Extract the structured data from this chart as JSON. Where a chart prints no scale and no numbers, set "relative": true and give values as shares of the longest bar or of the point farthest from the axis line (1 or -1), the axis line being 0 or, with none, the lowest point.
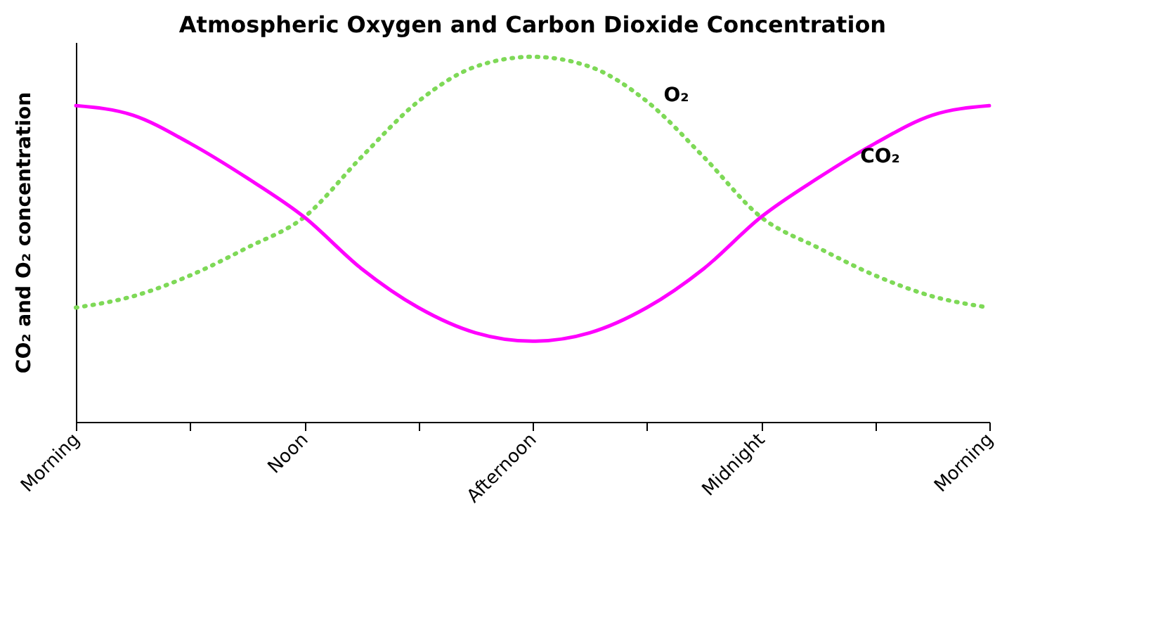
{
  "chart_data": {
    "type": "line",
    "title": "Atmospheric Oxygen and Carbon Dioxide Concentration",
    "ylabel": "CO₂ and O₂ concentration",
    "relative": true,
    "grid": false,
    "tick_labels": "x",
    "marker": "none",
    "categories": [
      "Morning",
      null,
      null,
      null,
      "Noon",
      null,
      null,
      null,
      "Afternoon",
      null,
      null,
      null,
      "Midnight",
      null,
      null,
      null,
      "Morning"
    ],
    "series": [
      {
        "name": "O₂",
        "color": "#7ed957",
        "line_style": "dotted",
        "values": [
          0.313,
          0.344,
          0.401,
          0.477,
          0.561,
          0.725,
          0.878,
          0.973,
          1,
          0.973,
          0.878,
          0.725,
          0.561,
          0.477,
          0.401,
          0.344,
          0.313
        ]
      },
      {
        "name": "CO₂",
        "color": "#ff00ff",
        "line_style": "solid",
        "values": [
          0.866,
          0.84,
          0.763,
          0.668,
          0.561,
          0.42,
          0.313,
          0.244,
          0.221,
          0.244,
          0.313,
          0.42,
          0.561,
          0.668,
          0.763,
          0.84,
          0.866
        ]
      }
    ]
  }
}
